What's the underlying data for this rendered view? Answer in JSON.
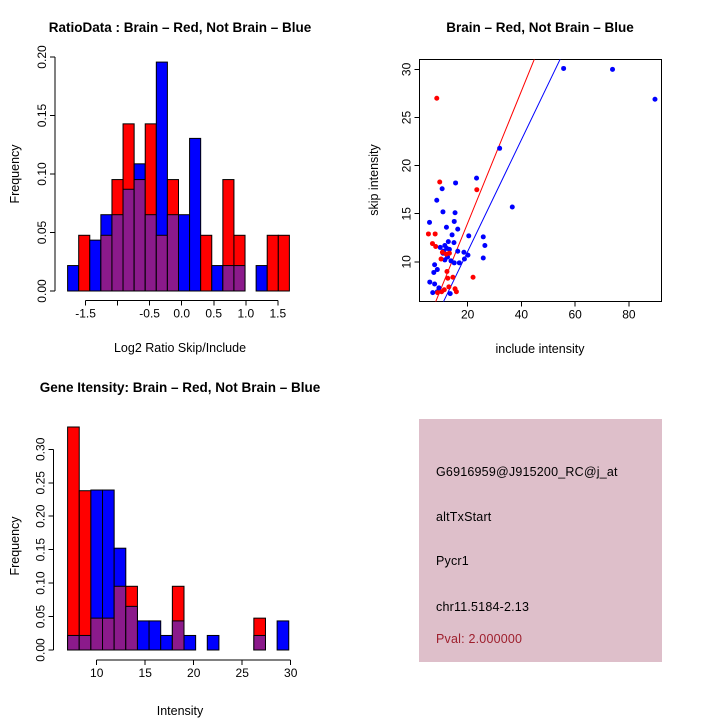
{
  "window": {
    "background": "#ffffff"
  },
  "palette": {
    "red": "#ff0000",
    "blue": "#0000ff",
    "purple": "#8b1a8b",
    "axis": "#000000",
    "info_box_pink": "#debfca",
    "pval_red": "#9e1f2d"
  },
  "chart_data": [
    {
      "id": "ratio-histogram",
      "type": "bar",
      "title": "RatioData : Brain – Red, Not Brain – Blue",
      "xlabel": "Log2 Ratio Skip/Include",
      "ylabel": "Frequency",
      "groups": [
        {
          "name": "Brain",
          "color": "red",
          "n": 21
        },
        {
          "name": "Not Brain",
          "color": "blue",
          "n": 46
        }
      ],
      "n_red": 21,
      "n_blue": 46,
      "bin_start": -1.78,
      "bin_width": 0.173,
      "bins_red": [
        0,
        1,
        0,
        1,
        2,
        3,
        2,
        3,
        1,
        2,
        0,
        0,
        1,
        0,
        2,
        1,
        0,
        0,
        1,
        1
      ],
      "bins_blue": [
        1,
        0,
        2,
        3,
        3,
        4,
        5,
        3,
        9,
        3,
        3,
        6,
        0,
        1,
        1,
        1,
        0,
        1,
        0,
        0
      ],
      "x_ticks": [
        {
          "v": -1.5,
          "label": "-1.5"
        },
        {
          "v": -1.0,
          "label": ""
        },
        {
          "v": -0.5,
          "label": "-0.5"
        },
        {
          "v": 0.0,
          "label": "0.0"
        },
        {
          "v": 0.5,
          "label": "0.5"
        },
        {
          "v": 1.0,
          "label": "1.0"
        },
        {
          "v": 1.5,
          "label": "1.5"
        }
      ],
      "y_ticks": [
        {
          "v": 0.0,
          "label": "0.00"
        },
        {
          "v": 0.05,
          "label": "0.05"
        },
        {
          "v": 0.1,
          "label": "0.10"
        },
        {
          "v": 0.15,
          "label": "0.15"
        },
        {
          "v": 0.2,
          "label": "0.20"
        }
      ],
      "ylim": [
        0,
        0.2
      ],
      "grid": false,
      "legend_position": "none"
    },
    {
      "id": "intensity-scatter",
      "type": "scatter",
      "title": "Brain – Red, Not Brain – Blue",
      "xlabel": "include intensity",
      "ylabel": "skip intensity",
      "xlim": [
        2.0,
        92.2
      ],
      "ylim": [
        5.86,
        31.05
      ],
      "x_ticks": [
        {
          "v": 20,
          "label": "20"
        },
        {
          "v": 40,
          "label": "40"
        },
        {
          "v": 60,
          "label": "60"
        },
        {
          "v": 80,
          "label": "80"
        }
      ],
      "y_ticks": [
        {
          "v": 10,
          "label": "10"
        },
        {
          "v": 15,
          "label": "15"
        },
        {
          "v": 20,
          "label": "20"
        },
        {
          "v": 25,
          "label": "25"
        },
        {
          "v": 30,
          "label": "30"
        }
      ],
      "red_points": [
        [
          8.5,
          27.0
        ],
        [
          9.6,
          18.3
        ],
        [
          23.4,
          17.5
        ],
        [
          5.4,
          12.9
        ],
        [
          7.9,
          12.9
        ],
        [
          6.9,
          11.9
        ],
        [
          8.1,
          11.6
        ],
        [
          10.6,
          11.0
        ],
        [
          12.0,
          10.8
        ],
        [
          13.2,
          10.9
        ],
        [
          10.1,
          10.3
        ],
        [
          12.3,
          9.0
        ],
        [
          12.6,
          8.3
        ],
        [
          14.5,
          8.4
        ],
        [
          22.0,
          8.4
        ],
        [
          13.0,
          7.4
        ],
        [
          11.3,
          7.1
        ],
        [
          15.3,
          7.2
        ],
        [
          15.8,
          6.9
        ],
        [
          8.8,
          6.8
        ],
        [
          10.3,
          6.9
        ]
      ],
      "blue_points": [
        [
          55.7,
          30.1
        ],
        [
          73.9,
          30.0
        ],
        [
          89.7,
          26.9
        ],
        [
          31.9,
          21.8
        ],
        [
          23.3,
          18.7
        ],
        [
          15.5,
          18.2
        ],
        [
          10.5,
          17.6
        ],
        [
          8.5,
          16.4
        ],
        [
          36.6,
          15.7
        ],
        [
          10.8,
          15.2
        ],
        [
          15.3,
          15.1
        ],
        [
          5.8,
          14.1
        ],
        [
          15.0,
          14.2
        ],
        [
          12.1,
          13.6
        ],
        [
          16.3,
          13.4
        ],
        [
          14.2,
          12.8
        ],
        [
          20.4,
          12.7
        ],
        [
          25.8,
          12.6
        ],
        [
          14.9,
          12.0
        ],
        [
          26.4,
          11.7
        ],
        [
          11.5,
          11.7
        ],
        [
          12.2,
          11.4
        ],
        [
          13.2,
          11.3
        ],
        [
          11.0,
          11.1
        ],
        [
          16.3,
          11.1
        ],
        [
          18.6,
          11.0
        ],
        [
          20.1,
          10.7
        ],
        [
          25.8,
          10.4
        ],
        [
          11.5,
          10.2
        ],
        [
          13.8,
          10.1
        ],
        [
          15.0,
          9.9
        ],
        [
          16.9,
          9.9
        ],
        [
          7.7,
          9.7
        ],
        [
          8.7,
          9.2
        ],
        [
          7.4,
          8.9
        ],
        [
          18.8,
          10.3
        ],
        [
          12.5,
          10.5
        ],
        [
          10.8,
          10.9
        ],
        [
          12.8,
          12.1
        ],
        [
          9.8,
          11.5
        ],
        [
          5.9,
          7.9
        ],
        [
          7.7,
          7.7
        ],
        [
          8.7,
          6.9
        ],
        [
          7.0,
          6.8
        ],
        [
          9.3,
          7.3
        ],
        [
          13.5,
          6.7
        ]
      ],
      "red_line": [
        [
          8.1,
          5.86
        ],
        [
          44.8,
          31.05
        ]
      ],
      "blue_line": [
        [
          11.0,
          5.86
        ],
        [
          54.4,
          31.05
        ]
      ],
      "grid": false,
      "legend_position": "none"
    },
    {
      "id": "gene-histogram",
      "type": "bar",
      "title": "Gene Itensity: Brain – Red, Not Brain – Blue",
      "xlabel": "Intensity",
      "ylabel": "Frequency",
      "groups": [
        {
          "name": "Brain",
          "color": "red",
          "n": 21
        },
        {
          "name": "Not Brain",
          "color": "blue",
          "n": 46
        }
      ],
      "n_red": 21,
      "n_blue": 46,
      "bin_start": 7.0,
      "bin_width": 1.2,
      "bins_red": [
        7,
        5,
        1,
        1,
        2,
        2,
        0,
        0,
        0,
        2,
        0,
        0,
        0,
        0,
        0,
        0,
        1,
        0,
        0
      ],
      "bins_blue": [
        1,
        1,
        11,
        11,
        7,
        3,
        2,
        2,
        1,
        2,
        1,
        0,
        1,
        0,
        0,
        0,
        1,
        0,
        2
      ],
      "x_ticks": [
        {
          "v": 10,
          "label": "10"
        },
        {
          "v": 15,
          "label": "15"
        },
        {
          "v": 20,
          "label": "20"
        },
        {
          "v": 25,
          "label": "25"
        },
        {
          "v": 30,
          "label": "30"
        }
      ],
      "y_ticks": [
        {
          "v": 0.0,
          "label": "0.00"
        },
        {
          "v": 0.05,
          "label": "0.05"
        },
        {
          "v": 0.1,
          "label": "0.10"
        },
        {
          "v": 0.15,
          "label": "0.15"
        },
        {
          "v": 0.2,
          "label": "0.20"
        },
        {
          "v": 0.25,
          "label": "0.25"
        },
        {
          "v": 0.3,
          "label": "0.30"
        }
      ],
      "ylim": [
        0,
        0.345
      ],
      "grid": false,
      "legend_position": "none"
    }
  ],
  "info_panel": {
    "probe_id": "G6916959@J915200_RC@j_at",
    "splice_type": "altTxStart",
    "gene_symbol": "Pycr1",
    "locus": "chr11.5184-2.13",
    "pval_text": "Pval: 2.000000"
  }
}
